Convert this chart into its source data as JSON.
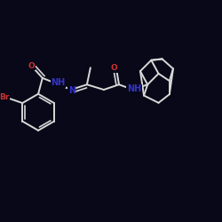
{
  "background_color": "#080818",
  "bond_color": "#d8d8d8",
  "atom_colors": {
    "Br": "#cc3333",
    "O": "#cc3333",
    "N": "#3333cc",
    "C": "#d8d8d8"
  },
  "bond_width": 1.4,
  "font_size": 6.5
}
